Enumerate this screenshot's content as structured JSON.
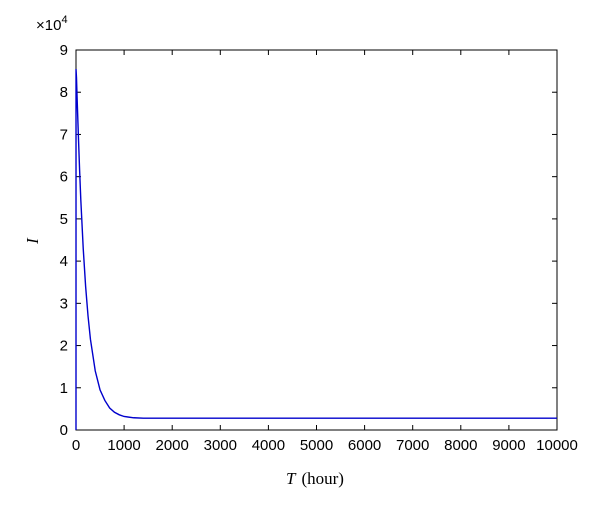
{
  "chart_data": {
    "type": "line",
    "title": "",
    "xlabel_var": "T",
    "xlabel_unit": "(hour)",
    "ylabel": "I",
    "y_multiplier_base": "×10",
    "y_multiplier_exp": "4",
    "xlim": [
      0,
      10000
    ],
    "ylim": [
      0,
      9
    ],
    "xticks": [
      0,
      1000,
      2000,
      3000,
      4000,
      5000,
      6000,
      7000,
      8000,
      9000,
      10000
    ],
    "yticks": [
      0,
      1,
      2,
      3,
      4,
      5,
      6,
      7,
      8,
      9
    ],
    "grid": false,
    "line_color": "#0000cc",
    "series": [
      {
        "x": [
          0,
          0.5,
          10,
          25,
          50,
          75,
          100,
          150,
          200,
          250,
          300,
          400,
          500,
          600,
          700,
          800,
          900,
          1000,
          1200,
          1400,
          1600,
          2000,
          3000,
          4000,
          5000,
          6000,
          7000,
          8000,
          9000,
          10000
        ],
        "y": [
          0,
          8.55,
          8.35,
          7.8,
          6.95,
          6.15,
          5.45,
          4.3,
          3.4,
          2.7,
          2.15,
          1.4,
          0.95,
          0.7,
          0.52,
          0.42,
          0.36,
          0.32,
          0.29,
          0.28,
          0.28,
          0.28,
          0.28,
          0.28,
          0.28,
          0.28,
          0.28,
          0.28,
          0.28,
          0.28
        ]
      }
    ]
  }
}
